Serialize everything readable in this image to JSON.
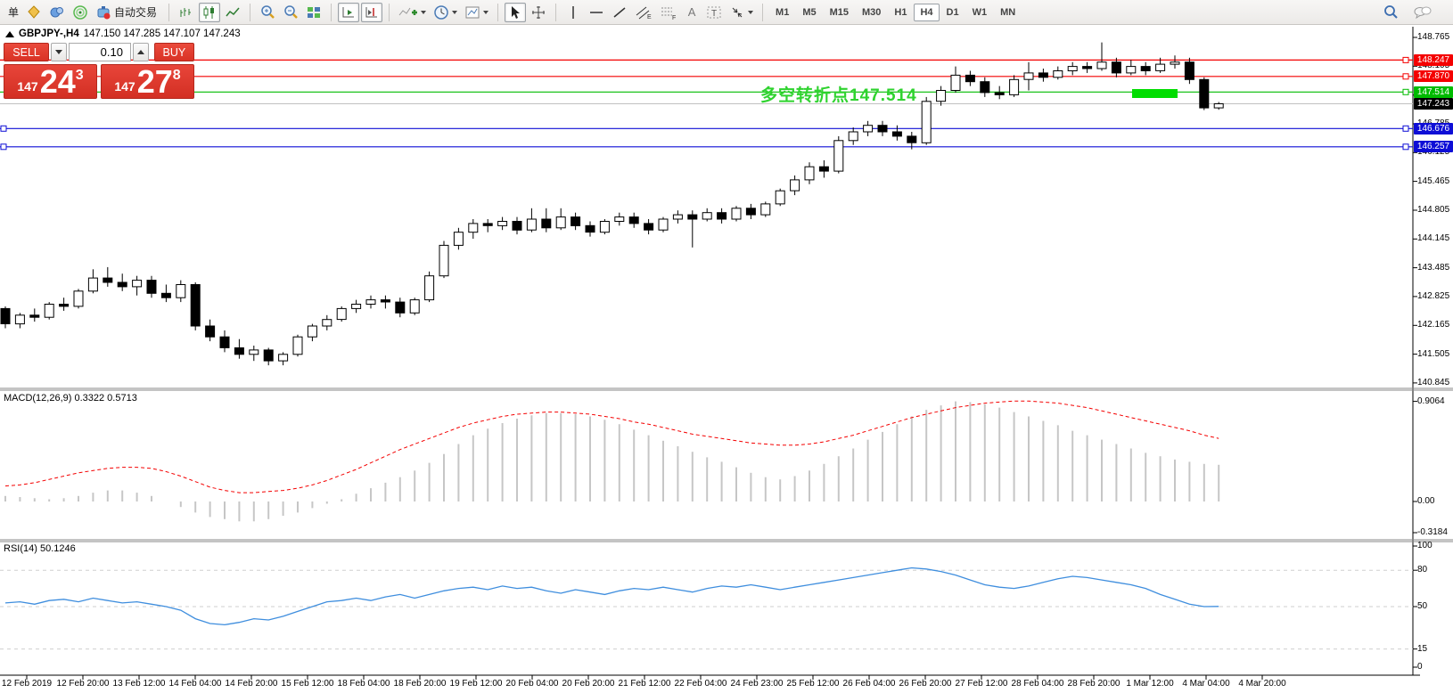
{
  "toolbar": {
    "order_label": "单",
    "auto_trading_label": "自动交易",
    "glyphs": {
      "text_tool": "A",
      "label_tool": "T",
      "channel": "E",
      "fibo": "F"
    },
    "timeframes": [
      "M1",
      "M5",
      "M15",
      "M30",
      "H1",
      "H4",
      "D1",
      "W1",
      "MN"
    ],
    "active_timeframe": "H4"
  },
  "symbol_header": {
    "symbol": "GBPJPY-,H4",
    "ohlc": "147.150 147.285 147.107 147.243"
  },
  "trade_panel": {
    "sell_label": "SELL",
    "buy_label": "BUY",
    "volume": "0.10",
    "sell_price": {
      "prefix": "147",
      "big": "24",
      "sup": "3"
    },
    "buy_price": {
      "prefix": "147",
      "big": "27",
      "sup": "8"
    }
  },
  "annotation": {
    "text": "多空转折点147.514"
  },
  "colors": {
    "bull": "#ffffff",
    "bear": "#000000",
    "outline": "#000000",
    "red_level": "#f40000",
    "green_level": "#00bb00",
    "green_zone": "#00dd00",
    "blue_level": "#0e0ed6",
    "price_line": "#c0c0c0",
    "price_tag_bg": "#000000",
    "macd_hist": "#c6c6c6",
    "macd_signal": "#f40000",
    "rsi_line": "#3f8ede",
    "panel_red": "#e23b30"
  },
  "chart_data": {
    "type": "candlestick+indicators",
    "symbol": "GBPJPY-",
    "timeframe": "H4",
    "current_bar": {
      "open": 147.15,
      "high": 147.285,
      "low": 147.107,
      "close": 147.243
    },
    "bid": 147.243,
    "ask": 147.278,
    "price_axis_ticks": [
      148.765,
      148.105,
      147.445,
      146.785,
      146.125,
      145.465,
      144.805,
      144.145,
      143.485,
      142.825,
      142.165,
      141.505,
      140.845
    ],
    "levels": [
      {
        "price": 148.247,
        "color": "#f40000",
        "tag": "#f40000",
        "left_handle": false
      },
      {
        "price": 147.87,
        "color": "#f40000",
        "tag": "#f40000",
        "left_handle": false
      },
      {
        "price": 147.514,
        "color": "#00bb00",
        "tag": "#00bb00",
        "left_handle": false
      },
      {
        "price": 146.676,
        "color": "#0e0ed6",
        "tag": "#0e0ed6",
        "left_handle": true
      },
      {
        "price": 146.257,
        "color": "#0e0ed6",
        "tag": "#0e0ed6",
        "left_handle": true
      }
    ],
    "price_line": {
      "price": 147.243,
      "color": "#c0c0c0",
      "tag_bg": "#000000"
    },
    "green_zone": {
      "bar_start": 77.1,
      "bar_end": 80.2,
      "price_top": 147.58,
      "price_bottom": 147.38,
      "color": "#00dd00"
    },
    "candles": [
      [
        142.55,
        142.6,
        142.1,
        142.2
      ],
      [
        142.2,
        142.45,
        142.1,
        142.4
      ],
      [
        142.4,
        142.55,
        142.25,
        142.35
      ],
      [
        142.35,
        142.7,
        142.3,
        142.65
      ],
      [
        142.65,
        142.8,
        142.5,
        142.6
      ],
      [
        142.6,
        143.0,
        142.55,
        142.95
      ],
      [
        142.95,
        143.45,
        142.9,
        143.25
      ],
      [
        143.25,
        143.5,
        143.05,
        143.15
      ],
      [
        143.15,
        143.35,
        142.95,
        143.05
      ],
      [
        143.05,
        143.3,
        142.85,
        143.2
      ],
      [
        143.2,
        143.3,
        142.8,
        142.9
      ],
      [
        142.9,
        143.1,
        142.7,
        142.8
      ],
      [
        142.8,
        143.2,
        142.7,
        143.1
      ],
      [
        143.1,
        143.15,
        142.05,
        142.15
      ],
      [
        142.15,
        142.3,
        141.8,
        141.9
      ],
      [
        141.9,
        142.05,
        141.55,
        141.65
      ],
      [
        141.65,
        141.85,
        141.4,
        141.5
      ],
      [
        141.5,
        141.7,
        141.35,
        141.6
      ],
      [
        141.6,
        141.65,
        141.25,
        141.35
      ],
      [
        141.35,
        141.55,
        141.25,
        141.5
      ],
      [
        141.5,
        141.95,
        141.45,
        141.9
      ],
      [
        141.9,
        142.2,
        141.8,
        142.15
      ],
      [
        142.15,
        142.4,
        142.05,
        142.3
      ],
      [
        142.3,
        142.6,
        142.25,
        142.55
      ],
      [
        142.55,
        142.75,
        142.45,
        142.65
      ],
      [
        142.65,
        142.85,
        142.55,
        142.75
      ],
      [
        142.75,
        142.85,
        142.55,
        142.7
      ],
      [
        142.7,
        142.8,
        142.35,
        142.45
      ],
      [
        142.45,
        142.8,
        142.4,
        142.75
      ],
      [
        142.75,
        143.4,
        142.7,
        143.3
      ],
      [
        143.3,
        144.1,
        143.25,
        144.0
      ],
      [
        144.0,
        144.4,
        143.9,
        144.3
      ],
      [
        144.3,
        144.6,
        144.15,
        144.5
      ],
      [
        144.5,
        144.6,
        144.3,
        144.45
      ],
      [
        144.45,
        144.65,
        144.35,
        144.55
      ],
      [
        144.55,
        144.65,
        144.25,
        144.35
      ],
      [
        144.35,
        144.85,
        144.3,
        144.6
      ],
      [
        144.6,
        144.85,
        144.3,
        144.4
      ],
      [
        144.4,
        144.85,
        144.35,
        144.65
      ],
      [
        144.65,
        144.75,
        144.35,
        144.45
      ],
      [
        144.45,
        144.55,
        144.2,
        144.3
      ],
      [
        144.3,
        144.6,
        144.25,
        144.55
      ],
      [
        144.55,
        144.75,
        144.45,
        144.65
      ],
      [
        144.65,
        144.75,
        144.4,
        144.5
      ],
      [
        144.5,
        144.6,
        144.25,
        144.35
      ],
      [
        144.35,
        144.65,
        144.3,
        144.6
      ],
      [
        144.6,
        144.8,
        144.5,
        144.7
      ],
      [
        144.7,
        144.8,
        143.95,
        144.6
      ],
      [
        144.6,
        144.85,
        144.55,
        144.75
      ],
      [
        144.75,
        144.85,
        144.5,
        144.6
      ],
      [
        144.6,
        144.9,
        144.55,
        144.85
      ],
      [
        144.85,
        144.95,
        144.6,
        144.7
      ],
      [
        144.7,
        145.0,
        144.65,
        144.95
      ],
      [
        144.95,
        145.3,
        144.9,
        145.25
      ],
      [
        145.25,
        145.6,
        145.15,
        145.5
      ],
      [
        145.5,
        145.9,
        145.4,
        145.8
      ],
      [
        145.8,
        145.95,
        145.55,
        145.7
      ],
      [
        145.7,
        146.5,
        145.65,
        146.4
      ],
      [
        146.4,
        146.7,
        146.3,
        146.6
      ],
      [
        146.6,
        146.85,
        146.5,
        146.75
      ],
      [
        146.75,
        146.85,
        146.5,
        146.6
      ],
      [
        146.6,
        146.75,
        146.4,
        146.5
      ],
      [
        146.5,
        146.6,
        146.2,
        146.35
      ],
      [
        146.35,
        147.4,
        146.3,
        147.3
      ],
      [
        147.3,
        147.65,
        147.2,
        147.55
      ],
      [
        147.55,
        148.1,
        147.5,
        147.9
      ],
      [
        147.9,
        148.0,
        147.65,
        147.75
      ],
      [
        147.75,
        147.85,
        147.4,
        147.5
      ],
      [
        147.5,
        147.65,
        147.35,
        147.45
      ],
      [
        147.45,
        147.9,
        147.4,
        147.8
      ],
      [
        147.8,
        148.2,
        147.55,
        147.95
      ],
      [
        147.95,
        148.05,
        147.75,
        147.85
      ],
      [
        147.85,
        148.1,
        147.8,
        148.0
      ],
      [
        148.0,
        148.2,
        147.9,
        148.1
      ],
      [
        148.1,
        148.2,
        147.95,
        148.05
      ],
      [
        148.05,
        148.65,
        148.0,
        148.2
      ],
      [
        148.2,
        148.3,
        147.85,
        147.95
      ],
      [
        147.95,
        148.25,
        147.9,
        148.1
      ],
      [
        148.1,
        148.2,
        147.9,
        148.0
      ],
      [
        148.0,
        148.3,
        147.95,
        148.15
      ],
      [
        148.15,
        148.35,
        148.05,
        148.2
      ],
      [
        148.2,
        148.3,
        147.7,
        147.8
      ],
      [
        147.8,
        147.85,
        147.1,
        147.15
      ],
      [
        147.15,
        147.285,
        147.107,
        147.243
      ]
    ],
    "macd": {
      "label": "MACD(12,26,9) 0.3322 0.5713",
      "main_value": 0.3322,
      "signal_value": 0.5713,
      "axis_labels": [
        {
          "v": 0.9064,
          "t": "0.9064"
        },
        {
          "v": 0,
          "t": "0.00"
        },
        {
          "v": -0.3184,
          "t": "-0.3184"
        }
      ],
      "hist": [
        0.05,
        0.04,
        0.03,
        0.02,
        0.03,
        0.05,
        0.08,
        0.1,
        0.1,
        0.08,
        0.05,
        0.0,
        -0.05,
        -0.1,
        -0.14,
        -0.16,
        -0.18,
        -0.18,
        -0.16,
        -0.13,
        -0.1,
        -0.06,
        -0.02,
        0.02,
        0.07,
        0.12,
        0.17,
        0.22,
        0.28,
        0.35,
        0.43,
        0.52,
        0.6,
        0.66,
        0.71,
        0.75,
        0.78,
        0.8,
        0.8,
        0.79,
        0.77,
        0.74,
        0.7,
        0.65,
        0.6,
        0.55,
        0.5,
        0.45,
        0.4,
        0.36,
        0.31,
        0.26,
        0.22,
        0.2,
        0.23,
        0.28,
        0.34,
        0.41,
        0.48,
        0.56,
        0.63,
        0.7,
        0.77,
        0.83,
        0.87,
        0.9064,
        0.9,
        0.88,
        0.85,
        0.81,
        0.77,
        0.73,
        0.69,
        0.64,
        0.6,
        0.56,
        0.52,
        0.48,
        0.44,
        0.41,
        0.38,
        0.36,
        0.34,
        0.3322
      ],
      "signal": [
        0.14,
        0.15,
        0.17,
        0.2,
        0.23,
        0.26,
        0.28,
        0.3,
        0.31,
        0.31,
        0.3,
        0.27,
        0.23,
        0.18,
        0.13,
        0.1,
        0.08,
        0.08,
        0.09,
        0.1,
        0.12,
        0.15,
        0.19,
        0.24,
        0.29,
        0.35,
        0.41,
        0.47,
        0.52,
        0.57,
        0.62,
        0.67,
        0.71,
        0.74,
        0.77,
        0.79,
        0.8,
        0.81,
        0.81,
        0.8,
        0.79,
        0.77,
        0.75,
        0.72,
        0.7,
        0.67,
        0.64,
        0.61,
        0.59,
        0.57,
        0.55,
        0.53,
        0.52,
        0.51,
        0.51,
        0.52,
        0.54,
        0.57,
        0.6,
        0.64,
        0.68,
        0.72,
        0.76,
        0.79,
        0.82,
        0.85,
        0.87,
        0.89,
        0.9,
        0.91,
        0.91,
        0.9,
        0.89,
        0.87,
        0.85,
        0.82,
        0.79,
        0.76,
        0.73,
        0.7,
        0.67,
        0.64,
        0.6,
        0.5713
      ]
    },
    "rsi": {
      "label": "RSI(14) 50.1246",
      "value": 50.1246,
      "axis_labels": [
        {
          "v": 100,
          "t": "100"
        },
        {
          "v": 80,
          "t": "80"
        },
        {
          "v": 50,
          "t": "50"
        },
        {
          "v": 15,
          "t": "15"
        },
        {
          "v": 0,
          "t": "0"
        }
      ],
      "dashed_levels": [
        80,
        50,
        15
      ],
      "values": [
        53,
        54,
        52,
        55,
        56,
        54,
        57,
        55,
        53,
        54,
        52,
        50,
        47,
        40,
        36,
        35,
        37,
        40,
        39,
        42,
        46,
        50,
        54,
        55,
        57,
        55,
        58,
        60,
        57,
        60,
        63,
        65,
        66,
        64,
        67,
        65,
        66,
        63,
        61,
        64,
        62,
        60,
        63,
        65,
        64,
        66,
        64,
        62,
        65,
        67,
        66,
        68,
        66,
        64,
        66,
        68,
        70,
        72,
        74,
        76,
        78,
        80,
        82,
        81,
        79,
        76,
        72,
        68,
        66,
        65,
        67,
        70,
        73,
        75,
        74,
        72,
        70,
        68,
        65,
        60,
        56,
        52,
        50,
        50.12
      ]
    },
    "time_labels": [
      "12 Feb 2019",
      "12 Feb 20:00",
      "13 Feb 12:00",
      "14 Feb 04:00",
      "14 Feb 20:00",
      "15 Feb 12:00",
      "18 Feb 04:00",
      "18 Feb 20:00",
      "19 Feb 12:00",
      "20 Feb 04:00",
      "20 Feb 20:00",
      "21 Feb 12:00",
      "22 Feb 04:00",
      "24 Feb 23:00",
      "25 Feb 12:00",
      "26 Feb 04:00",
      "26 Feb 20:00",
      "27 Feb 12:00",
      "28 Feb 04:00",
      "28 Feb 20:00",
      "1 Mar 12:00",
      "4 Mar 04:00",
      "4 Mar 20:00"
    ]
  }
}
